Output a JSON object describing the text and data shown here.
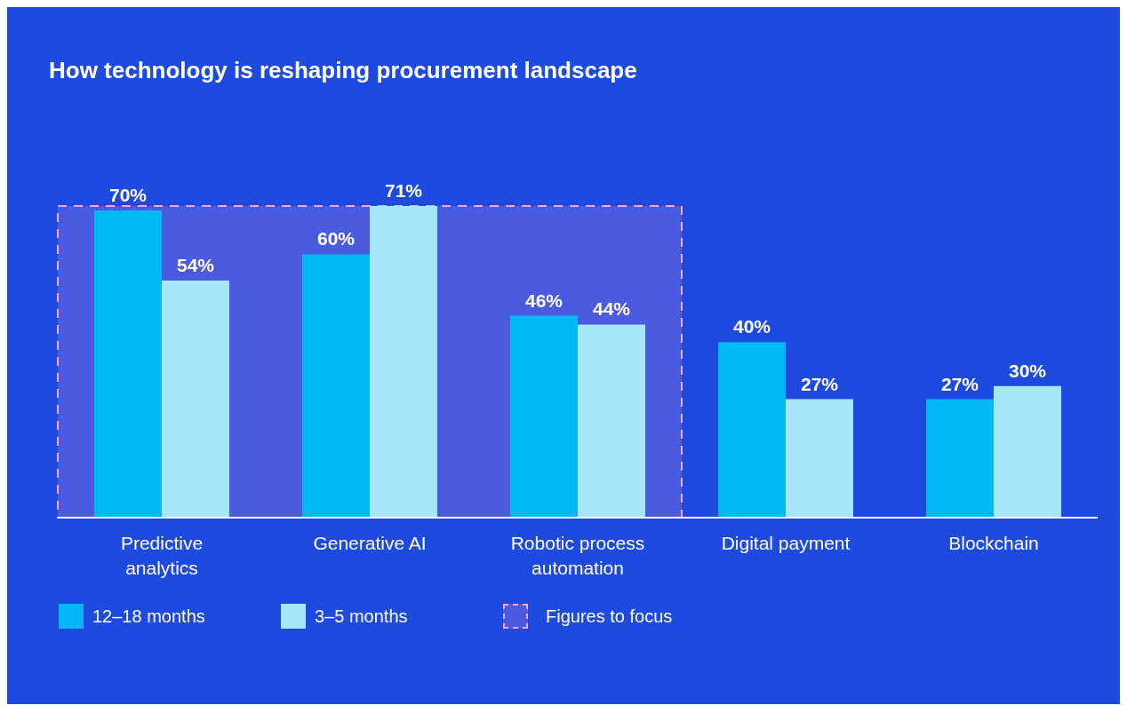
{
  "chart_data": {
    "type": "bar",
    "title": "How technology is reshaping procurement landscape",
    "categories": [
      "Predictive analytics",
      "Generative AI",
      "Robotic process automation",
      "Digital payment",
      "Blockchain"
    ],
    "series": [
      {
        "name": "12–18 months",
        "color": "#00b8f5",
        "values": [
          70,
          60,
          46,
          40,
          27
        ],
        "value_labels": [
          "70%",
          "60%",
          "46%",
          "40%",
          "27%"
        ]
      },
      {
        "name": "3–5 months",
        "color": "#a8e6fc",
        "values": [
          54,
          71,
          44,
          27,
          30
        ],
        "value_labels": [
          "54%",
          "71%",
          "44%",
          "27%",
          "30%"
        ]
      }
    ],
    "bands": [
      {
        "axis": "x",
        "from": "Predictive analytics",
        "to": "Robotic process automation",
        "label": "Figures to focus",
        "color": "#4b5be0"
      }
    ],
    "legend": "bottom"
  }
}
